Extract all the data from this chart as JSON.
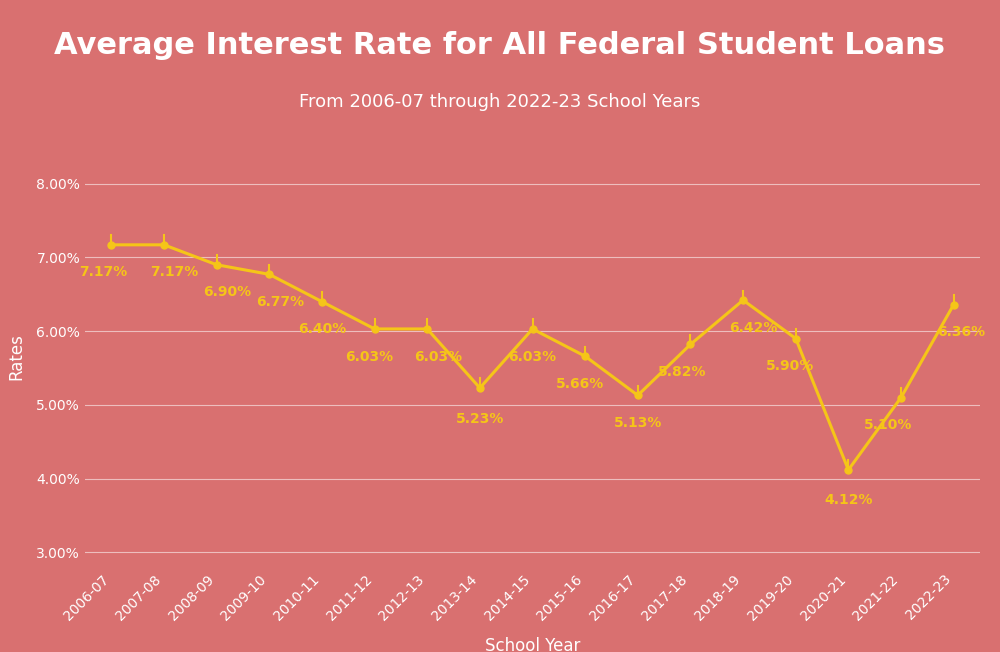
{
  "title": "Average Interest Rate for All Federal Student Loans",
  "subtitle": "From 2006-07 through 2022-23 School Years",
  "xlabel": "School Year",
  "ylabel": "Rates",
  "categories": [
    "2006-07",
    "2007-08",
    "2008-09",
    "2009-10",
    "2010-11",
    "2011-12",
    "2012-13",
    "2013-14",
    "2014-15",
    "2015-16",
    "2016-17",
    "2017-18",
    "2018-19",
    "2019-20",
    "2020-21",
    "2021-22",
    "2022-23"
  ],
  "values": [
    7.17,
    7.17,
    6.9,
    6.77,
    6.4,
    6.03,
    6.03,
    5.23,
    6.03,
    5.66,
    5.13,
    5.82,
    6.42,
    5.9,
    4.12,
    5.1,
    6.36
  ],
  "ylim": [
    2.8,
    8.5
  ],
  "yticks": [
    3.0,
    4.0,
    5.0,
    6.0,
    7.0,
    8.0
  ],
  "header_bg_color": "#d94060",
  "plot_bg_color": "#d97070",
  "line_color": "#f5c518",
  "dot_color": "#f5c518",
  "label_color": "#f5c518",
  "grid_color": "#ffffff",
  "text_color": "#ffffff",
  "title_fontsize": 22,
  "subtitle_fontsize": 13,
  "label_fontsize": 10,
  "tick_fontsize": 10,
  "axis_label_fontsize": 12,
  "dark_bar_color": "#8b1050",
  "label_offsets_x": [
    -0.15,
    0.2,
    0.2,
    0.2,
    0.0,
    -0.1,
    0.2,
    0.0,
    0.0,
    -0.1,
    0.0,
    -0.15,
    0.2,
    -0.1,
    0.0,
    -0.25,
    0.15
  ],
  "label_offsets_y": [
    -0.28,
    -0.28,
    -0.28,
    -0.28,
    -0.28,
    -0.28,
    -0.28,
    -0.32,
    -0.28,
    -0.28,
    -0.28,
    -0.28,
    -0.28,
    -0.28,
    -0.32,
    -0.28,
    -0.28
  ]
}
